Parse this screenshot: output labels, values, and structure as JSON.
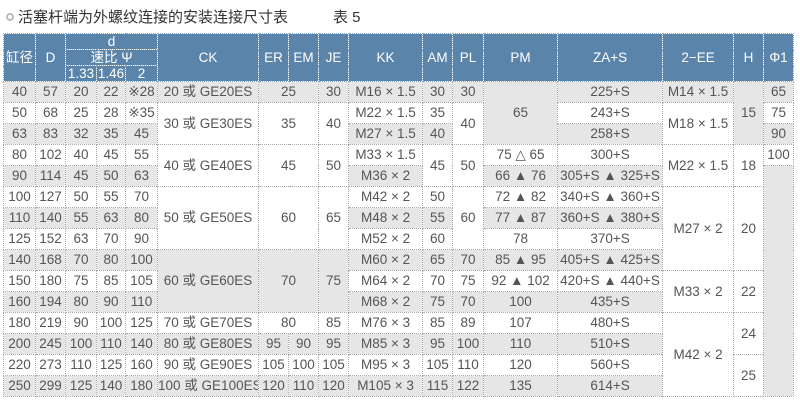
{
  "title": "活塞杆端为外螺纹连接的安装连接尺寸表",
  "table_no": "表 5",
  "header": {
    "bore": "缸径",
    "D": "D",
    "d": "d",
    "ratio": "速比 Ψ",
    "ratios": [
      "1.33",
      "1.46",
      "2"
    ],
    "CK": "CK",
    "ER": "ER",
    "EM": "EM",
    "JE": "JE",
    "KK": "KK",
    "AM": "AM",
    "PL": "PL",
    "PM": "PM",
    "ZA": "ZA+S",
    "EE": "2−EE",
    "H": "H",
    "phi": "Φ1"
  },
  "rows": [
    {
      "bore": "40",
      "D": "57",
      "d": [
        "20",
        "22",
        "※28"
      ],
      "CK": {
        "v": "20 或 GE20ES"
      },
      "EREM": {
        "v": "25"
      },
      "JE": {
        "v": "30"
      },
      "KK": "M16 × 1.5",
      "AM": {
        "v": "30"
      },
      "PL": {
        "v": "30"
      },
      "PM": {
        "v": "65",
        "rs": 3
      },
      "ZA": "225+S",
      "EE": {
        "v": "M14 × 1.5"
      },
      "H": {
        "v": "15",
        "rs": 3
      },
      "phi": {
        "v": "65"
      }
    },
    {
      "bore": "50",
      "D": "68",
      "d": [
        "25",
        "28",
        "※35"
      ],
      "CK": {
        "v": "30 或 GE30ES",
        "rs": 2
      },
      "EREM": {
        "v": "35",
        "rs": 2
      },
      "JE": {
        "v": "40",
        "rs": 2
      },
      "KK": "M22 × 1.5",
      "AM": {
        "v": "35"
      },
      "PL": {
        "v": "40",
        "rs": 2
      },
      "ZA": "243+S",
      "EE": {
        "v": "M18 × 1.5",
        "rs": 2
      },
      "phi": {
        "v": "75"
      }
    },
    {
      "bore": "63",
      "D": "83",
      "d": [
        "32",
        "35",
        "45"
      ],
      "KK": "M27 × 1.5",
      "AM": {
        "v": "40"
      },
      "ZA": "258+S",
      "phi": {
        "v": "90"
      }
    },
    {
      "bore": "80",
      "D": "102",
      "d": [
        "40",
        "45",
        "55"
      ],
      "CK": {
        "v": "40 或 GE40ES",
        "rs": 2
      },
      "EREM": {
        "v": "45",
        "rs": 2
      },
      "JE": {
        "v": "50",
        "rs": 2
      },
      "KK": "M33 × 1.5",
      "AM": {
        "v": "45",
        "rs": 2
      },
      "PL": {
        "v": "50",
        "rs": 2
      },
      "PM": {
        "v": "75 △ 65"
      },
      "ZA": "300+S",
      "EE": {
        "v": "M22 × 1.5",
        "rs": 2
      },
      "H": {
        "v": "18",
        "rs": 2
      },
      "phi": {
        "v": "100"
      }
    },
    {
      "bore": "90",
      "D": "114",
      "d": [
        "45",
        "50",
        "63"
      ],
      "KK": "M36 × 2",
      "PM": {
        "v": "66 ▲ 76"
      },
      "ZA": "305+S ▲ 325+S",
      "phi": {
        "v": "",
        "rs": 11
      }
    },
    {
      "bore": "100",
      "D": "127",
      "d": [
        "50",
        "55",
        "70"
      ],
      "CK": {
        "v": "50 或 GE50ES",
        "rs": 3
      },
      "EREM": {
        "v": "60",
        "rs": 3
      },
      "JE": {
        "v": "65",
        "rs": 3
      },
      "KK": "M42 × 2",
      "AM": {
        "v": "50"
      },
      "PL": {
        "v": "60",
        "rs": 3
      },
      "PM": {
        "v": "72 ▲ 82"
      },
      "ZA": "340+S ▲ 360+S",
      "EE": {
        "v": "M27 × 2",
        "rs": 4
      },
      "H": {
        "v": "20",
        "rs": 4
      }
    },
    {
      "bore": "110",
      "D": "140",
      "d": [
        "55",
        "63",
        "80"
      ],
      "KK": "M48 × 2",
      "AM": {
        "v": "55"
      },
      "PM": {
        "v": "77 ▲ 87"
      },
      "ZA": "360+S ▲ 380+S"
    },
    {
      "bore": "125",
      "D": "152",
      "d": [
        "63",
        "70",
        "90"
      ],
      "KK": "M52 × 2",
      "AM": {
        "v": "60"
      },
      "PM": {
        "v": "78"
      },
      "ZA": "370+S"
    },
    {
      "bore": "140",
      "D": "168",
      "d": [
        "70",
        "80",
        "100"
      ],
      "CK": {
        "v": "60 或 GE60ES",
        "rs": 3
      },
      "EREM": {
        "v": "70",
        "rs": 3
      },
      "JE": {
        "v": "75",
        "rs": 3
      },
      "KK": "M60 × 2",
      "AM": {
        "v": "65"
      },
      "PL": {
        "v": "70"
      },
      "PM": {
        "v": "85 ▲ 95"
      },
      "ZA": "405+S ▲ 425+S"
    },
    {
      "bore": "150",
      "D": "180",
      "d": [
        "75",
        "85",
        "105"
      ],
      "KK": "M64 × 2",
      "AM": {
        "v": "70"
      },
      "PL": {
        "v": "75"
      },
      "PM": {
        "v": "92 ▲ 102"
      },
      "ZA": "420+S ▲ 440+S",
      "EE": {
        "v": "M33 × 2",
        "rs": 2
      },
      "H": {
        "v": "22",
        "rs": 2
      }
    },
    {
      "bore": "160",
      "D": "194",
      "d": [
        "80",
        "90",
        "110"
      ],
      "KK": "M68 × 2",
      "AM": {
        "v": "75"
      },
      "PL": {
        "v": "70"
      },
      "PM": {
        "v": "100"
      },
      "ZA": "435+S"
    },
    {
      "bore": "180",
      "D": "219",
      "d": [
        "90",
        "100",
        "125"
      ],
      "CK": {
        "v": "70 或 GE70ES"
      },
      "EREM": {
        "v": "80"
      },
      "JE": {
        "v": "85"
      },
      "KK": "M76 × 3",
      "AM": {
        "v": "85"
      },
      "PL": {
        "v": "89"
      },
      "PM": {
        "v": "107"
      },
      "ZA": "480+S",
      "EE": {
        "v": "M42 × 2",
        "rs": 4
      },
      "H": {
        "v": "24",
        "rs": 2
      }
    },
    {
      "bore": "200",
      "D": "245",
      "d": [
        "100",
        "110",
        "140"
      ],
      "CK": {
        "v": "80 或 GE80ES"
      },
      "ER": "95",
      "EM": "90",
      "JE": {
        "v": "95"
      },
      "KK": "M85 × 3",
      "AM": {
        "v": "95"
      },
      "PL": {
        "v": "100"
      },
      "PM": {
        "v": "110"
      },
      "ZA": "510+S"
    },
    {
      "bore": "220",
      "D": "273",
      "d": [
        "110",
        "125",
        "160"
      ],
      "CK": {
        "v": "90 或 GE90ES"
      },
      "ER": "105",
      "EM": "100",
      "JE": {
        "v": "105"
      },
      "KK": "M95 × 3",
      "AM": {
        "v": "105"
      },
      "PL": {
        "v": "110"
      },
      "PM": {
        "v": "120"
      },
      "ZA": "560+S",
      "H": {
        "v": "25",
        "rs": 2
      }
    },
    {
      "bore": "250",
      "D": "299",
      "d": [
        "125",
        "140",
        "180"
      ],
      "CK": {
        "v": "100 或 GE100ES"
      },
      "ER": "120",
      "EM": "110",
      "JE": {
        "v": "120"
      },
      "KK": "M105 × 3",
      "AM": {
        "v": "115"
      },
      "PL": {
        "v": "122"
      },
      "PM": {
        "v": "135"
      },
      "ZA": "614+S"
    }
  ],
  "colors": {
    "header_bg": "#5b84aa",
    "stripe_bg": "#e6e6e6",
    "text": "#555555"
  }
}
